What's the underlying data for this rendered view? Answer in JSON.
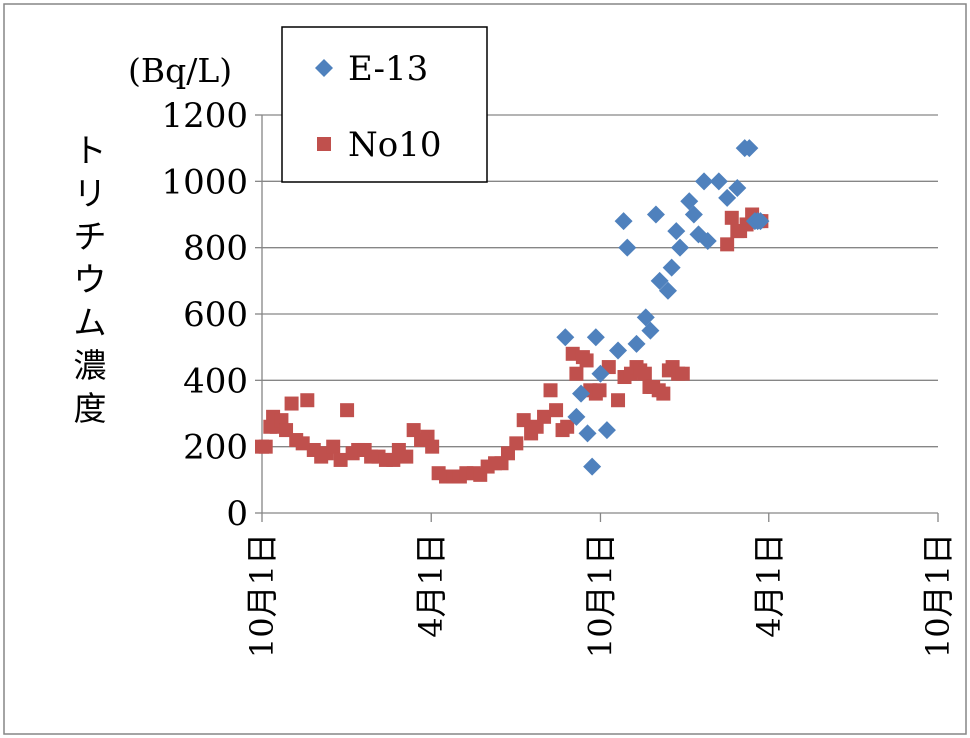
{
  "chart_data": {
    "type": "scatter",
    "unit_label": "(Bq/L)",
    "ylabel": "トリチウム濃度",
    "ylim": [
      0,
      1200
    ],
    "yticks": [
      "0",
      "200",
      "400",
      "600",
      "800",
      "1000",
      "1200"
    ],
    "ytick_values": [
      0,
      200,
      400,
      600,
      800,
      1000,
      1200
    ],
    "xlim": [
      "2011-10-01",
      "2013-10-01"
    ],
    "xticks": [
      "10月1日",
      "4月1日",
      "10月1日",
      "4月1日",
      "10月1日"
    ],
    "xtick_dates": [
      "2011-10-01",
      "2012-04-01",
      "2012-10-01",
      "2013-04-01",
      "2013-10-01"
    ],
    "grid": "horizontal",
    "legend": "top-left",
    "colors": {
      "E-13": "#4f81bd",
      "No10": "#c0504d"
    },
    "series": [
      {
        "name": "E-13",
        "marker": "diamond",
        "x": [
          "2012-08-24",
          "2012-09-05",
          "2012-09-10",
          "2012-09-17",
          "2012-09-22",
          "2012-09-26",
          "2012-10-01",
          "2012-10-08",
          "2012-10-20",
          "2012-10-26",
          "2012-10-30",
          "2012-11-09",
          "2012-11-19",
          "2012-11-24",
          "2012-11-30",
          "2012-12-04",
          "2012-12-13",
          "2012-12-17",
          "2012-12-22",
          "2012-12-26",
          "2013-01-05",
          "2013-01-10",
          "2013-01-15",
          "2013-01-21",
          "2013-01-25",
          "2013-02-06",
          "2013-02-15",
          "2013-02-26",
          "2013-03-06",
          "2013-03-11",
          "2013-03-17",
          "2013-03-20",
          "2013-03-23"
        ],
        "y": [
          530,
          290,
          360,
          240,
          140,
          530,
          420,
          250,
          490,
          880,
          800,
          510,
          590,
          550,
          900,
          700,
          670,
          740,
          850,
          800,
          940,
          900,
          840,
          1000,
          820,
          1000,
          950,
          980,
          1100,
          1100,
          880,
          880,
          880
        ]
      },
      {
        "name": "No10",
        "marker": "square",
        "x": [
          "2011-10-01",
          "2011-10-05",
          "2011-10-10",
          "2011-10-13",
          "2011-10-17",
          "2011-10-22",
          "2011-10-27",
          "2011-11-02",
          "2011-11-07",
          "2011-11-14",
          "2011-11-19",
          "2011-11-26",
          "2011-12-04",
          "2011-12-10",
          "2011-12-17",
          "2011-12-25",
          "2012-01-01",
          "2012-01-07",
          "2012-01-13",
          "2012-01-20",
          "2012-01-27",
          "2012-02-04",
          "2012-02-12",
          "2012-02-20",
          "2012-02-26",
          "2012-03-05",
          "2012-03-13",
          "2012-03-21",
          "2012-03-28",
          "2012-04-02",
          "2012-04-09",
          "2012-04-17",
          "2012-04-25",
          "2012-05-02",
          "2012-05-09",
          "2012-05-17",
          "2012-05-24",
          "2012-06-01",
          "2012-06-09",
          "2012-06-16",
          "2012-06-23",
          "2012-07-02",
          "2012-07-10",
          "2012-07-18",
          "2012-07-24",
          "2012-08-01",
          "2012-08-08",
          "2012-08-14",
          "2012-08-21",
          "2012-08-26",
          "2012-09-01",
          "2012-09-05",
          "2012-09-12",
          "2012-09-16",
          "2012-09-20",
          "2012-09-26",
          "2012-09-30",
          "2012-10-10",
          "2012-10-20",
          "2012-10-27",
          "2012-11-03",
          "2012-11-09",
          "2012-11-13",
          "2012-11-18",
          "2012-11-23",
          "2012-11-27",
          "2012-12-03",
          "2012-12-08",
          "2012-12-14",
          "2012-12-18",
          "2012-12-24",
          "2012-12-29",
          "2013-02-15",
          "2013-02-20",
          "2013-02-26",
          "2013-03-01",
          "2013-03-08",
          "2013-03-14",
          "2013-03-20",
          "2013-03-24"
        ],
        "y": [
          200,
          200,
          260,
          290,
          260,
          280,
          250,
          330,
          220,
          210,
          340,
          190,
          170,
          180,
          200,
          160,
          310,
          180,
          190,
          190,
          170,
          170,
          160,
          160,
          190,
          170,
          250,
          220,
          230,
          200,
          120,
          110,
          110,
          110,
          120,
          120,
          115,
          140,
          150,
          150,
          180,
          210,
          280,
          240,
          260,
          290,
          370,
          310,
          250,
          260,
          480,
          420,
          470,
          460,
          370,
          360,
          370,
          440,
          340,
          410,
          420,
          440,
          430,
          420,
          380,
          380,
          370,
          360,
          430,
          440,
          420,
          420,
          810,
          890,
          850,
          850,
          870,
          900,
          880,
          880
        ]
      }
    ]
  }
}
